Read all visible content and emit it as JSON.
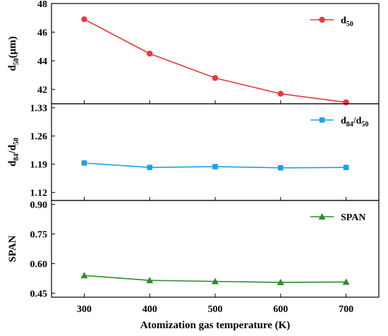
{
  "chart_data": [
    {
      "type": "line",
      "x": [
        300,
        400,
        500,
        600,
        700
      ],
      "xlabel": "Atomization gas temperature (K)",
      "xticks": [
        300,
        400,
        500,
        600,
        700
      ],
      "ylabel": {
        "base": "d",
        "sub": "50",
        "rest": "(μm)"
      },
      "ylim": [
        41,
        48
      ],
      "yticks": [
        42,
        44,
        46,
        48
      ],
      "legend_position": "top-right",
      "series": [
        {
          "name": {
            "base": "d",
            "sub": "50"
          },
          "color": "#e8383d",
          "marker": "circle",
          "values": [
            46.9,
            44.5,
            42.8,
            41.7,
            41.1
          ]
        }
      ]
    },
    {
      "type": "line",
      "x": [
        300,
        400,
        500,
        600,
        700
      ],
      "xticks": [
        300,
        400,
        500,
        600,
        700
      ],
      "ylabel": {
        "base": "d",
        "sub": "84",
        "mid": "/d",
        "sub2": "50"
      },
      "ylim": [
        1.1,
        1.34
      ],
      "yticks": [
        1.12,
        1.19,
        1.26,
        1.33
      ],
      "legend_position": "top-right",
      "series": [
        {
          "name": {
            "base": "d",
            "sub": "84",
            "mid": "/d",
            "sub2": "50"
          },
          "color": "#1aa3e8",
          "marker": "square",
          "values": [
            1.193,
            1.182,
            1.184,
            1.181,
            1.182
          ]
        }
      ]
    },
    {
      "type": "line",
      "x": [
        300,
        400,
        500,
        600,
        700
      ],
      "xticks": [
        300,
        400,
        500,
        600,
        700
      ],
      "ylabel": {
        "base": "SPAN"
      },
      "ylim": [
        0.43,
        0.92
      ],
      "yticks": [
        0.45,
        0.6,
        0.75,
        0.9
      ],
      "ytick_labels": [
        "0.45",
        "0.60",
        "0.75",
        "0.90"
      ],
      "legend_position": "top-right",
      "series": [
        {
          "name": {
            "base": "SPAN"
          },
          "color": "#2e8b2e",
          "marker": "triangle",
          "values": [
            0.54,
            0.515,
            0.51,
            0.505,
            0.507
          ]
        }
      ]
    }
  ]
}
